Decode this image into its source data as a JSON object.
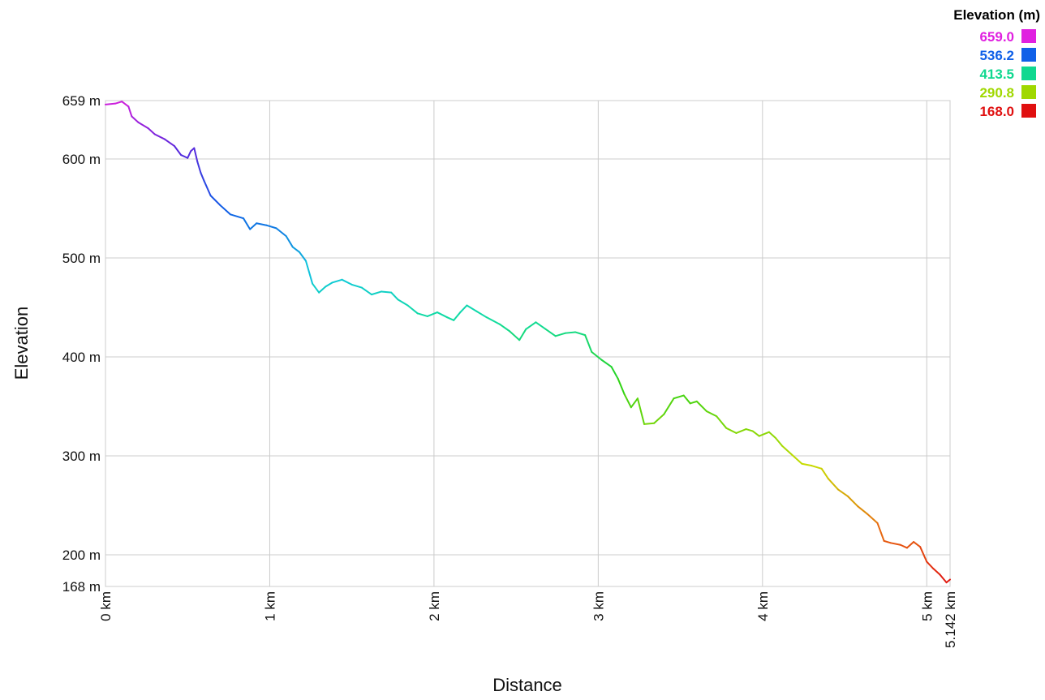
{
  "chart_data": {
    "type": "line",
    "xlabel": "Distance",
    "ylabel": "Elevation",
    "xlim": [
      0,
      5.142
    ],
    "ylim": [
      168,
      659
    ],
    "grid": true,
    "x_ticks": [
      {
        "value": 0,
        "label": "0 km"
      },
      {
        "value": 1,
        "label": "1 km"
      },
      {
        "value": 2,
        "label": "2 km"
      },
      {
        "value": 3,
        "label": "3 km"
      },
      {
        "value": 4,
        "label": "4 km"
      },
      {
        "value": 5,
        "label": "5 km"
      },
      {
        "value": 5.142,
        "label": "5.142 km"
      }
    ],
    "y_ticks": [
      {
        "value": 168,
        "label": "168 m"
      },
      {
        "value": 200,
        "label": "200 m"
      },
      {
        "value": 300,
        "label": "300 m"
      },
      {
        "value": 400,
        "label": "400 m"
      },
      {
        "value": 500,
        "label": "500 m"
      },
      {
        "value": 600,
        "label": "600 m"
      },
      {
        "value": 659,
        "label": "659 m"
      }
    ],
    "legend": {
      "title": "Elevation (m)",
      "placement": "top-right",
      "entries": [
        {
          "label": "659.0",
          "color": "#e020e0"
        },
        {
          "label": "536.2",
          "color": "#1060e8"
        },
        {
          "label": "413.5",
          "color": "#10d890"
        },
        {
          "label": "290.8",
          "color": "#a0d800"
        },
        {
          "label": "168.0",
          "color": "#e01010"
        }
      ]
    },
    "series": [
      {
        "points": [
          [
            0.0,
            655
          ],
          [
            0.06,
            656
          ],
          [
            0.1,
            658
          ],
          [
            0.14,
            653
          ],
          [
            0.16,
            643
          ],
          [
            0.2,
            637
          ],
          [
            0.26,
            631
          ],
          [
            0.3,
            625
          ],
          [
            0.36,
            620
          ],
          [
            0.42,
            613
          ],
          [
            0.46,
            604
          ],
          [
            0.5,
            601
          ],
          [
            0.52,
            608
          ],
          [
            0.54,
            611
          ],
          [
            0.56,
            597
          ],
          [
            0.58,
            586
          ],
          [
            0.6,
            578
          ],
          [
            0.64,
            563
          ],
          [
            0.7,
            553
          ],
          [
            0.76,
            544
          ],
          [
            0.84,
            540
          ],
          [
            0.88,
            529
          ],
          [
            0.92,
            535
          ],
          [
            0.98,
            533
          ],
          [
            1.04,
            530
          ],
          [
            1.1,
            522
          ],
          [
            1.14,
            511
          ],
          [
            1.18,
            506
          ],
          [
            1.22,
            497
          ],
          [
            1.26,
            474
          ],
          [
            1.3,
            465
          ],
          [
            1.34,
            471
          ],
          [
            1.38,
            475
          ],
          [
            1.44,
            478
          ],
          [
            1.5,
            473
          ],
          [
            1.56,
            470
          ],
          [
            1.62,
            463
          ],
          [
            1.68,
            466
          ],
          [
            1.74,
            465
          ],
          [
            1.78,
            458
          ],
          [
            1.84,
            452
          ],
          [
            1.9,
            444
          ],
          [
            1.96,
            441
          ],
          [
            2.02,
            445
          ],
          [
            2.08,
            440
          ],
          [
            2.12,
            437
          ],
          [
            2.16,
            445
          ],
          [
            2.2,
            452
          ],
          [
            2.26,
            446
          ],
          [
            2.32,
            440
          ],
          [
            2.4,
            433
          ],
          [
            2.46,
            426
          ],
          [
            2.52,
            417
          ],
          [
            2.56,
            428
          ],
          [
            2.62,
            435
          ],
          [
            2.68,
            428
          ],
          [
            2.74,
            421
          ],
          [
            2.8,
            424
          ],
          [
            2.86,
            425
          ],
          [
            2.92,
            422
          ],
          [
            2.96,
            405
          ],
          [
            3.02,
            397
          ],
          [
            3.08,
            390
          ],
          [
            3.12,
            378
          ],
          [
            3.16,
            362
          ],
          [
            3.2,
            349
          ],
          [
            3.24,
            358
          ],
          [
            3.28,
            332
          ],
          [
            3.34,
            333
          ],
          [
            3.4,
            342
          ],
          [
            3.46,
            358
          ],
          [
            3.52,
            361
          ],
          [
            3.56,
            353
          ],
          [
            3.6,
            355
          ],
          [
            3.66,
            345
          ],
          [
            3.72,
            340
          ],
          [
            3.78,
            328
          ],
          [
            3.84,
            323
          ],
          [
            3.9,
            327
          ],
          [
            3.94,
            325
          ],
          [
            3.98,
            320
          ],
          [
            4.04,
            324
          ],
          [
            4.08,
            318
          ],
          [
            4.12,
            310
          ],
          [
            4.18,
            301
          ],
          [
            4.24,
            292
          ],
          [
            4.3,
            290
          ],
          [
            4.36,
            287
          ],
          [
            4.4,
            277
          ],
          [
            4.46,
            266
          ],
          [
            4.52,
            259
          ],
          [
            4.58,
            249
          ],
          [
            4.64,
            241
          ],
          [
            4.7,
            232
          ],
          [
            4.74,
            214
          ],
          [
            4.78,
            212
          ],
          [
            4.84,
            210
          ],
          [
            4.88,
            207
          ],
          [
            4.92,
            213
          ],
          [
            4.96,
            208
          ],
          [
            5.0,
            193
          ],
          [
            5.04,
            186
          ],
          [
            5.08,
            180
          ],
          [
            5.12,
            172
          ],
          [
            5.142,
            175
          ]
        ]
      }
    ]
  }
}
